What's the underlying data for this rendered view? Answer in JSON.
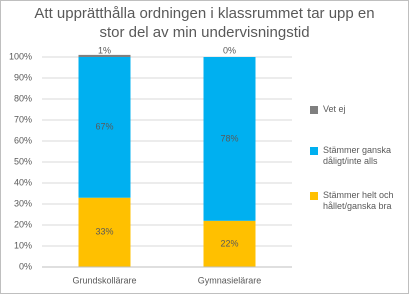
{
  "chart_data": {
    "type": "stacked_bar",
    "title": "Att upprätthålla ordningen i klassrummet tar upp en stor del av min undervisningstid",
    "categories": [
      "Grundskollärare",
      "Gymnasielärare"
    ],
    "series": [
      {
        "name": "Stämmer helt och hållet/ganska bra",
        "color": "#FFC000",
        "values": [
          33,
          22
        ],
        "value_labels": [
          "33%",
          "22%"
        ]
      },
      {
        "name": "Stämmer ganska dåligt/inte alls",
        "color": "#00B0F0",
        "values": [
          67,
          78
        ],
        "value_labels": [
          "67%",
          "78%"
        ]
      },
      {
        "name": "Vet ej",
        "color": "#7F7F7F",
        "values": [
          1,
          0
        ],
        "value_labels": [
          "1%",
          "0%"
        ]
      }
    ],
    "ylim": [
      0,
      100
    ],
    "yticks": [
      {
        "value": 0,
        "label": "0%"
      },
      {
        "value": 10,
        "label": "10%"
      },
      {
        "value": 20,
        "label": "20%"
      },
      {
        "value": 30,
        "label": "30%"
      },
      {
        "value": 40,
        "label": "40%"
      },
      {
        "value": 50,
        "label": "50%"
      },
      {
        "value": 60,
        "label": "60%"
      },
      {
        "value": 70,
        "label": "70%"
      },
      {
        "value": 80,
        "label": "80%"
      },
      {
        "value": 90,
        "label": "90%"
      },
      {
        "value": 100,
        "label": "100%"
      }
    ],
    "grid": true,
    "legend": "right"
  }
}
